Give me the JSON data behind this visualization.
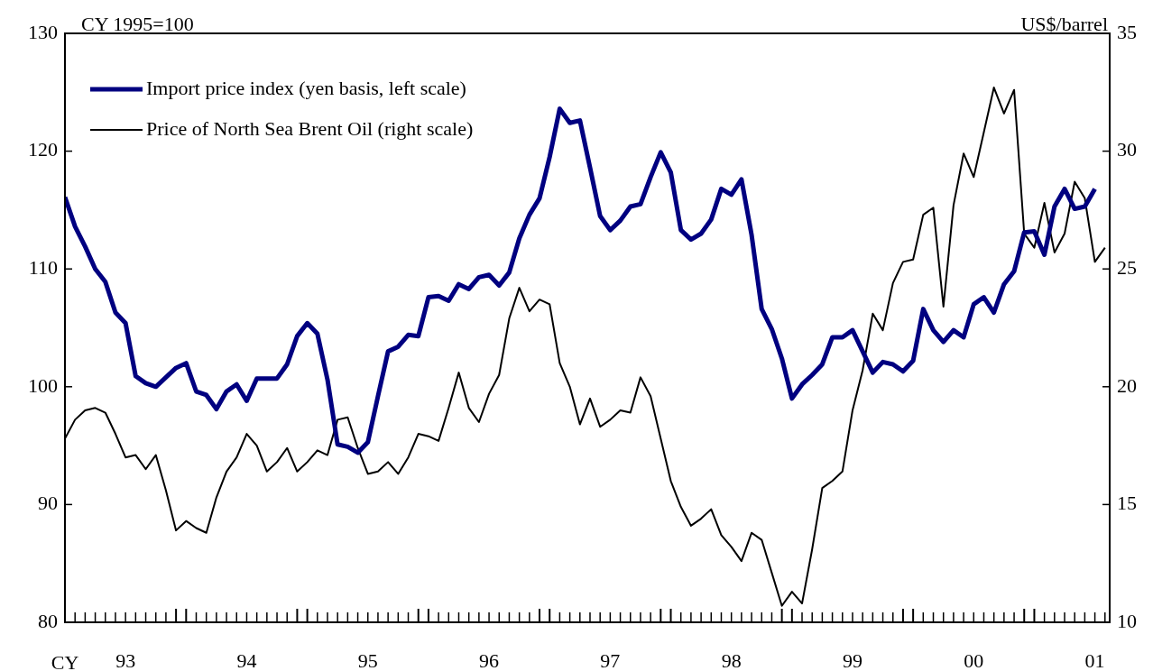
{
  "chart_data": {
    "type": "line",
    "xlabel": "CY",
    "ylabel": "CY 1995=100",
    "y2label": "US$/barrel",
    "x": [
      "1993-01",
      "1993-02",
      "1993-03",
      "1993-04",
      "1993-05",
      "1993-06",
      "1993-07",
      "1993-08",
      "1993-09",
      "1993-10",
      "1993-11",
      "1993-12",
      "1994-01",
      "1994-02",
      "1994-03",
      "1994-04",
      "1994-05",
      "1994-06",
      "1994-07",
      "1994-08",
      "1994-09",
      "1994-10",
      "1994-11",
      "1994-12",
      "1995-01",
      "1995-02",
      "1995-03",
      "1995-04",
      "1995-05",
      "1995-06",
      "1995-07",
      "1995-08",
      "1995-09",
      "1995-10",
      "1995-11",
      "1995-12",
      "1996-01",
      "1996-02",
      "1996-03",
      "1996-04",
      "1996-05",
      "1996-06",
      "1996-07",
      "1996-08",
      "1996-09",
      "1996-10",
      "1996-11",
      "1996-12",
      "1997-01",
      "1997-02",
      "1997-03",
      "1997-04",
      "1997-05",
      "1997-06",
      "1997-07",
      "1997-08",
      "1997-09",
      "1997-10",
      "1997-11",
      "1997-12",
      "1998-01",
      "1998-02",
      "1998-03",
      "1998-04",
      "1998-05",
      "1998-06",
      "1998-07",
      "1998-08",
      "1998-09",
      "1998-10",
      "1998-11",
      "1998-12",
      "1999-01",
      "1999-02",
      "1999-03",
      "1999-04",
      "1999-05",
      "1999-06",
      "1999-07",
      "1999-08",
      "1999-09",
      "1999-10",
      "1999-11",
      "1999-12",
      "2000-01",
      "2000-02",
      "2000-03",
      "2000-04",
      "2000-05",
      "2000-06",
      "2000-07",
      "2000-08",
      "2000-09",
      "2000-10",
      "2000-11",
      "2000-12",
      "2001-01",
      "2001-02",
      "2001-03",
      "2001-04",
      "2001-05",
      "2001-06",
      "2001-07",
      "2001-08"
    ],
    "series": [
      {
        "name": "Import price index (yen basis, left scale)",
        "color": "#000080",
        "values": [
          116.1,
          113.6,
          111.9,
          110.0,
          108.9,
          106.3,
          105.4,
          100.9,
          100.3,
          100.0,
          100.8,
          101.6,
          102.0,
          99.6,
          99.3,
          98.1,
          99.6,
          100.2,
          98.8,
          100.7,
          100.7,
          100.7,
          101.9,
          104.3,
          105.4,
          104.5,
          100.6,
          95.1,
          94.9,
          94.4,
          95.3,
          99.2,
          103.0,
          103.4,
          104.4,
          104.3,
          107.6,
          107.7,
          107.3,
          108.7,
          108.3,
          109.3,
          109.5,
          108.6,
          109.7,
          112.6,
          114.6,
          116.0,
          119.5,
          123.6,
          122.4,
          122.6,
          118.6,
          114.5,
          113.3,
          114.1,
          115.3,
          115.5,
          117.8,
          119.9,
          118.2,
          113.3,
          112.5,
          113.0,
          114.2,
          116.8,
          116.3,
          117.6,
          112.9,
          106.6,
          104.9,
          102.4,
          99.0,
          100.2,
          101.0,
          101.9,
          104.2,
          104.2,
          104.8,
          103.0,
          101.2,
          102.1,
          101.9,
          101.3,
          102.2,
          106.6,
          104.8,
          103.8,
          104.8,
          104.2,
          107.0,
          107.6,
          106.3,
          108.7,
          109.8,
          113.1,
          113.2,
          111.2,
          115.3,
          116.8,
          115.1,
          115.3,
          116.8,
          null
        ]
      },
      {
        "name": "Price of North Sea Brent Oil (right scale)",
        "color": "#000000",
        "axis": "y2",
        "values": [
          17.8,
          18.6,
          19.0,
          19.1,
          18.9,
          18.0,
          17.0,
          17.1,
          16.5,
          17.1,
          15.6,
          13.9,
          14.3,
          14.0,
          13.8,
          15.3,
          16.4,
          17.0,
          18.0,
          17.5,
          16.4,
          16.8,
          17.4,
          16.4,
          16.8,
          17.3,
          17.1,
          18.6,
          18.7,
          17.4,
          16.3,
          16.4,
          16.8,
          16.3,
          17.0,
          18.0,
          17.9,
          17.7,
          19.1,
          20.6,
          19.1,
          18.5,
          19.7,
          20.5,
          22.9,
          24.2,
          23.2,
          23.7,
          23.5,
          21.0,
          20.0,
          18.4,
          19.5,
          18.3,
          18.6,
          19.0,
          18.9,
          20.4,
          19.6,
          17.8,
          16.0,
          14.9,
          14.1,
          14.4,
          14.8,
          13.7,
          13.2,
          12.6,
          13.8,
          13.5,
          12.1,
          10.7,
          11.3,
          10.8,
          13.1,
          15.7,
          16.0,
          16.4,
          19.0,
          20.7,
          23.1,
          22.4,
          24.4,
          25.3,
          25.4,
          27.3,
          27.6,
          23.4,
          27.7,
          29.9,
          28.9,
          30.8,
          32.7,
          31.6,
          32.6,
          26.5,
          25.9,
          27.8,
          25.7,
          26.5,
          28.7,
          28.0,
          25.3,
          25.9
        ]
      }
    ],
    "xlim": [
      "1993-01",
      "2001-08-15"
    ],
    "xticks": [
      {
        "value": "1993-07",
        "label": "93"
      },
      {
        "value": "1994-07",
        "label": "94"
      },
      {
        "value": "1995-07",
        "label": "95"
      },
      {
        "value": "1996-07",
        "label": "96"
      },
      {
        "value": "1997-07",
        "label": "97"
      },
      {
        "value": "1998-07",
        "label": "98"
      },
      {
        "value": "1999-07",
        "label": "99"
      },
      {
        "value": "2000-07",
        "label": "00"
      },
      {
        "value": "2001-07",
        "label": "01"
      }
    ],
    "ylim": [
      80,
      130
    ],
    "yticks": [
      80,
      90,
      100,
      110,
      120,
      130
    ],
    "y2lim": [
      10,
      35
    ],
    "y2ticks": [
      10,
      15,
      20,
      25,
      30,
      35
    ],
    "grid": false,
    "legend": "top left",
    "marker": "none",
    "line_style": "solid"
  }
}
